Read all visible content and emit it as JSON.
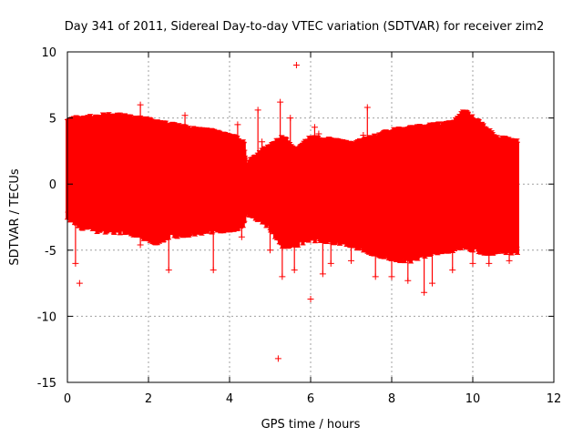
{
  "chart_data": {
    "type": "scatter",
    "title": "Day 341 of 2011, Sidereal Day-to-day VTEC variation (SDTVAR) for receiver zim2",
    "xlabel": "GPS time / hours",
    "ylabel": "SDTVAR / TECUs",
    "xlim": [
      0,
      12
    ],
    "ylim": [
      -15,
      10
    ],
    "xticks": [
      0,
      2,
      4,
      6,
      8,
      10,
      12
    ],
    "yticks": [
      -15,
      -10,
      -5,
      0,
      5,
      10
    ],
    "grid": true,
    "marker": "+",
    "color": "#ff0000",
    "band": [
      [
        0.0,
        4.8,
        -2.5
      ],
      [
        0.3,
        5.0,
        -3.0
      ],
      [
        0.5,
        5.0,
        -3.3
      ],
      [
        1.0,
        5.2,
        -3.4
      ],
      [
        1.5,
        5.1,
        -3.5
      ],
      [
        2.0,
        4.8,
        -4.0
      ],
      [
        2.2,
        4.7,
        -4.3
      ],
      [
        2.5,
        4.5,
        -3.8
      ],
      [
        3.0,
        4.2,
        -3.6
      ],
      [
        3.5,
        4.0,
        -3.4
      ],
      [
        4.0,
        3.6,
        -3.3
      ],
      [
        4.35,
        3.3,
        -3.0
      ],
      [
        4.4,
        1.5,
        -2.0
      ],
      [
        4.8,
        2.5,
        -2.6
      ],
      [
        5.0,
        2.8,
        -3.2
      ],
      [
        5.3,
        3.6,
        -4.5
      ],
      [
        5.6,
        2.5,
        -4.5
      ],
      [
        6.0,
        3.5,
        -4.0
      ],
      [
        6.5,
        3.3,
        -4.2
      ],
      [
        7.0,
        3.0,
        -4.4
      ],
      [
        7.5,
        3.5,
        -5.0
      ],
      [
        8.0,
        4.0,
        -5.5
      ],
      [
        8.5,
        4.2,
        -5.6
      ],
      [
        9.0,
        4.4,
        -5.0
      ],
      [
        9.5,
        4.6,
        -4.8
      ],
      [
        9.8,
        5.5,
        -4.5
      ],
      [
        10.2,
        4.5,
        -5.0
      ],
      [
        10.6,
        3.5,
        -5.0
      ],
      [
        11.1,
        3.2,
        -5.0
      ]
    ],
    "excursions": [
      [
        0.3,
        -7.5
      ],
      [
        0.2,
        -6.0
      ],
      [
        1.8,
        6.0
      ],
      [
        2.5,
        -6.5
      ],
      [
        2.9,
        5.2
      ],
      [
        3.6,
        -6.5
      ],
      [
        4.3,
        -4.0
      ],
      [
        4.7,
        5.6
      ],
      [
        4.8,
        3.2
      ],
      [
        5.0,
        -5.0
      ],
      [
        5.25,
        6.2
      ],
      [
        5.3,
        -7.0
      ],
      [
        5.5,
        5.0
      ],
      [
        5.6,
        -6.5
      ],
      [
        5.65,
        9.0
      ],
      [
        6.0,
        -8.7
      ],
      [
        6.1,
        4.3
      ],
      [
        6.3,
        -6.8
      ],
      [
        6.5,
        -6.0
      ],
      [
        7.0,
        -5.8
      ],
      [
        7.4,
        5.8
      ],
      [
        7.6,
        -7.0
      ],
      [
        8.0,
        -7.0
      ],
      [
        8.4,
        -7.3
      ],
      [
        8.8,
        -8.2
      ],
      [
        9.0,
        -7.5
      ],
      [
        9.5,
        -6.5
      ],
      [
        10.0,
        -6.0
      ],
      [
        10.4,
        -6.0
      ],
      [
        10.9,
        -5.8
      ],
      [
        5.2,
        -13.2
      ],
      [
        1.8,
        -4.6
      ],
      [
        4.2,
        4.5
      ],
      [
        7.3,
        3.7
      ],
      [
        6.2,
        3.8
      ]
    ]
  }
}
